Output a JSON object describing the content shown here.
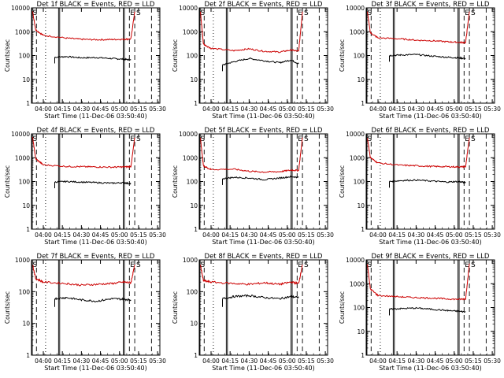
{
  "figure": {
    "xlabel": "Start Time (11-Dec-06 03:50:40)",
    "ylabel": "Counts/sec",
    "x_ticks": [
      "04:00",
      "04:15",
      "04:30",
      "04:45",
      "05:00",
      "05:15",
      "05:30"
    ],
    "y_ticks": [
      "1",
      "10",
      "100",
      "1000",
      "10000"
    ],
    "region_labels": [
      "S",
      "E",
      "S"
    ]
  },
  "chart_data": [
    {
      "type": "line",
      "title": "Det 1f BLACK = Events, RED = LLD",
      "y_max_label": "10000",
      "ylim": [
        1,
        10000
      ],
      "series": [
        {
          "name": "Events",
          "color": "#000000",
          "x": [
            4.15,
            4.3,
            4.5,
            4.7,
            4.9,
            5.05,
            5.15
          ],
          "y": [
            85,
            90,
            80,
            82,
            75,
            70,
            65
          ]
        },
        {
          "name": "LLD",
          "color": "#cc0000",
          "x": [
            3.86,
            3.9,
            4.0,
            4.3,
            4.5,
            4.7,
            4.9,
            5.05,
            5.15,
            5.2
          ],
          "y": [
            7000,
            1200,
            700,
            540,
            480,
            460,
            470,
            480,
            500,
            7000
          ]
        }
      ]
    },
    {
      "type": "line",
      "title": "Det 2f BLACK = Events, RED = LLD",
      "y_max_label": "10000",
      "ylim": [
        1,
        10000
      ],
      "series": [
        {
          "name": "Events",
          "color": "#000000",
          "x": [
            4.15,
            4.3,
            4.5,
            4.7,
            4.9,
            5.05,
            5.15
          ],
          "y": [
            40,
            55,
            75,
            60,
            50,
            65,
            45
          ]
        },
        {
          "name": "LLD",
          "color": "#cc0000",
          "x": [
            3.86,
            3.9,
            4.0,
            4.3,
            4.5,
            4.7,
            4.9,
            5.05,
            5.15,
            5.2
          ],
          "y": [
            7000,
            300,
            200,
            160,
            190,
            150,
            140,
            170,
            150,
            7000
          ]
        }
      ]
    },
    {
      "type": "line",
      "title": "Det 3f BLACK = Events, RED = LLD",
      "y_max_label": "10000",
      "ylim": [
        1,
        10000
      ],
      "series": [
        {
          "name": "Events",
          "color": "#000000",
          "x": [
            4.15,
            4.3,
            4.5,
            4.7,
            4.9,
            5.05,
            5.15
          ],
          "y": [
            100,
            105,
            110,
            95,
            85,
            80,
            75
          ]
        },
        {
          "name": "LLD",
          "color": "#cc0000",
          "x": [
            3.86,
            3.9,
            4.0,
            4.3,
            4.5,
            4.7,
            4.9,
            5.05,
            5.15,
            5.2
          ],
          "y": [
            7000,
            900,
            550,
            500,
            440,
            420,
            380,
            360,
            350,
            7000
          ]
        }
      ]
    },
    {
      "type": "line",
      "title": "Det 4f BLACK = Events, RED = LLD",
      "y_max_label": "10000",
      "ylim": [
        1,
        10000
      ],
      "series": [
        {
          "name": "Events",
          "color": "#000000",
          "x": [
            4.15,
            4.3,
            4.5,
            4.7,
            4.9,
            5.05,
            5.15
          ],
          "y": [
            95,
            100,
            95,
            90,
            85,
            90,
            80
          ]
        },
        {
          "name": "LLD",
          "color": "#cc0000",
          "x": [
            3.86,
            3.9,
            4.0,
            4.3,
            4.5,
            4.7,
            4.9,
            5.05,
            5.15,
            5.2
          ],
          "y": [
            7000,
            900,
            500,
            430,
            420,
            410,
            400,
            410,
            420,
            7000
          ]
        }
      ]
    },
    {
      "type": "line",
      "title": "Det 5f BLACK = Events, RED = LLD",
      "y_max_label": "10000",
      "ylim": [
        1,
        10000
      ],
      "series": [
        {
          "name": "Events",
          "color": "#000000",
          "x": [
            4.15,
            4.3,
            4.5,
            4.7,
            4.9,
            5.05,
            5.15
          ],
          "y": [
            130,
            150,
            140,
            120,
            140,
            160,
            150
          ]
        },
        {
          "name": "LLD",
          "color": "#cc0000",
          "x": [
            3.86,
            3.9,
            4.0,
            4.3,
            4.5,
            4.7,
            4.9,
            5.05,
            5.15,
            5.2
          ],
          "y": [
            7000,
            450,
            320,
            330,
            270,
            250,
            260,
            300,
            290,
            7000
          ]
        }
      ]
    },
    {
      "type": "line",
      "title": "Det 6f BLACK = Events, RED = LLD",
      "y_max_label": "10000",
      "ylim": [
        1,
        10000
      ],
      "series": [
        {
          "name": "Events",
          "color": "#000000",
          "x": [
            4.15,
            4.3,
            4.5,
            4.7,
            4.9,
            5.05,
            5.15
          ],
          "y": [
            100,
            110,
            115,
            105,
            95,
            100,
            90
          ]
        },
        {
          "name": "LLD",
          "color": "#cc0000",
          "x": [
            3.86,
            3.9,
            4.0,
            4.3,
            4.5,
            4.7,
            4.9,
            5.05,
            5.15,
            5.2
          ],
          "y": [
            7000,
            1000,
            600,
            480,
            460,
            430,
            420,
            410,
            420,
            7000
          ]
        }
      ]
    },
    {
      "type": "line",
      "title": "Det 7f BLACK = Events, RED = LLD",
      "y_max_label": "1000",
      "ylim": [
        1,
        1000
      ],
      "series": [
        {
          "name": "Events",
          "color": "#000000",
          "x": [
            4.15,
            4.3,
            4.5,
            4.7,
            4.9,
            5.05,
            5.15
          ],
          "y": [
            60,
            65,
            55,
            50,
            60,
            58,
            55
          ]
        },
        {
          "name": "LLD",
          "color": "#cc0000",
          "x": [
            3.86,
            3.9,
            4.0,
            4.3,
            4.5,
            4.7,
            4.9,
            5.05,
            5.15,
            5.2
          ],
          "y": [
            700,
            260,
            200,
            180,
            160,
            170,
            180,
            200,
            190,
            700
          ]
        }
      ]
    },
    {
      "type": "line",
      "title": "Det 8f BLACK = Events, RED = LLD",
      "y_max_label": "1000",
      "ylim": [
        1,
        1000
      ],
      "series": [
        {
          "name": "Events",
          "color": "#000000",
          "x": [
            4.15,
            4.3,
            4.5,
            4.7,
            4.9,
            5.05,
            5.15
          ],
          "y": [
            60,
            70,
            75,
            65,
            60,
            70,
            65
          ]
        },
        {
          "name": "LLD",
          "color": "#cc0000",
          "x": [
            3.86,
            3.9,
            4.0,
            4.3,
            4.5,
            4.7,
            4.9,
            5.05,
            5.15,
            5.2
          ],
          "y": [
            700,
            220,
            200,
            180,
            170,
            190,
            170,
            200,
            180,
            700
          ]
        }
      ]
    },
    {
      "type": "line",
      "title": "Det 9f BLACK = Events, RED = LLD",
      "y_max_label": "10000",
      "ylim": [
        1,
        10000
      ],
      "series": [
        {
          "name": "Events",
          "color": "#000000",
          "x": [
            4.15,
            4.3,
            4.5,
            4.7,
            4.9,
            5.05,
            5.15
          ],
          "y": [
            85,
            90,
            95,
            85,
            75,
            70,
            65
          ]
        },
        {
          "name": "LLD",
          "color": "#cc0000",
          "x": [
            3.86,
            3.9,
            4.0,
            4.3,
            4.5,
            4.7,
            4.9,
            5.05,
            5.15,
            5.2
          ],
          "y": [
            7000,
            600,
            320,
            280,
            260,
            250,
            230,
            220,
            230,
            7000
          ]
        }
      ]
    }
  ]
}
